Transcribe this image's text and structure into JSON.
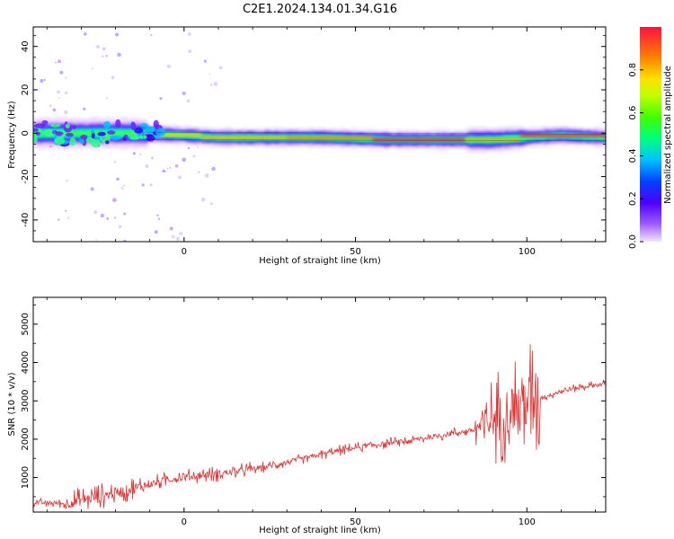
{
  "title": "C2E1.2024.134.01.34.G16",
  "chart_data": [
    {
      "type": "heatmap",
      "xlabel": "Height of straight line (km)",
      "ylabel": "Frequency (Hz)",
      "xlim": [
        -44,
        123
      ],
      "ylim": [
        -50,
        49
      ],
      "xticks": [
        0,
        50,
        100
      ],
      "yticks": [
        -40,
        -20,
        0,
        20,
        40
      ],
      "ridge": {
        "x": [
          -44,
          -30,
          -15,
          0,
          10,
          20,
          40,
          60,
          80,
          90,
          100,
          110,
          123
        ],
        "freq": [
          0,
          0,
          0,
          -1,
          -2,
          -2,
          -2,
          -3,
          -3,
          -3,
          -2,
          -1,
          -2
        ]
      },
      "colorbar": {
        "label": "Normalized spectral amplitude",
        "range": [
          0,
          1
        ],
        "ticks": [
          "0.0",
          "0.2",
          "0.4",
          "0.6",
          "0.8"
        ]
      }
    },
    {
      "type": "line",
      "xlabel": "Height of straight line (km)",
      "ylabel": "SNR (10 * v/v)",
      "xlim": [
        -44,
        123
      ],
      "ylim": [
        100,
        5700
      ],
      "xticks": [
        0,
        50,
        100
      ],
      "yticks": [
        1000,
        2000,
        3000,
        4000,
        5000
      ],
      "line_color": "#e03030",
      "series": [
        {
          "x": [
            -44,
            -35,
            -25,
            -15,
            -5,
            5,
            15,
            25,
            35,
            45,
            55,
            65,
            75,
            85,
            90,
            95,
            100,
            105,
            110,
            115,
            123
          ],
          "values": [
            350,
            320,
            500,
            700,
            950,
            1050,
            1150,
            1300,
            1500,
            1700,
            1850,
            1950,
            2100,
            2250,
            2500,
            2800,
            3000,
            3100,
            3250,
            3350,
            3450
          ]
        }
      ]
    }
  ]
}
